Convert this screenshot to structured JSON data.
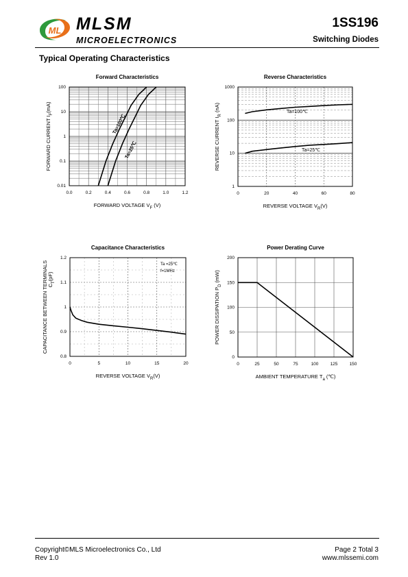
{
  "header": {
    "brand_name": "MLSM",
    "brand_sub": "MICROELECTRONICS",
    "part_number": "1SS196",
    "part_description": "Switching  Diodes",
    "logo_text": "ML"
  },
  "section_title": "Typical Operating Characteristics",
  "footer": {
    "copyright": "Copyright©MLS Microelectronics Co., Ltd",
    "revision": "Rev 1.0",
    "page": "Page 2 Total 3",
    "website": "www.mlssemi.com"
  },
  "colors": {
    "logo_green": "#2e9a3c",
    "logo_orange": "#e8701a",
    "line": "#000000"
  },
  "chart_data": [
    {
      "type": "line",
      "title": "Forward  Characteristics",
      "xlabel": "FORWARD VOLTAGE  V_F (V)",
      "ylabel": "FORWARD CURRENT   I_F(mA)",
      "xlim": [
        0,
        1.2
      ],
      "ylim": [
        0.01,
        100
      ],
      "yscale": "log",
      "x_ticks": [
        "0.0",
        "0.2",
        "0.4",
        "0.6",
        "0.8",
        "1.0",
        "1.2"
      ],
      "y_ticks": [
        "0.01",
        "0.1",
        "1",
        "10",
        "100"
      ],
      "series": [
        {
          "name": "Ta=100℃",
          "x": [
            0.3,
            0.38,
            0.45,
            0.52,
            0.58,
            0.64,
            0.72,
            0.8
          ],
          "y": [
            0.01,
            0.1,
            0.5,
            2,
            6,
            18,
            50,
            100
          ]
        },
        {
          "name": "Ta=25℃",
          "x": [
            0.4,
            0.48,
            0.55,
            0.62,
            0.68,
            0.74,
            0.82,
            0.9
          ],
          "y": [
            0.01,
            0.1,
            0.5,
            2,
            6,
            18,
            50,
            100
          ]
        }
      ],
      "grid": true
    },
    {
      "type": "line",
      "title": "Reverse  Characteristics",
      "xlabel": "REVERSE VOLTAGE   V_R(V)",
      "ylabel": "REVERSE CURRENT   I_R  (nA)",
      "xlim": [
        0,
        80
      ],
      "ylim": [
        1,
        1000
      ],
      "yscale": "log",
      "x_ticks": [
        "0",
        "20",
        "40",
        "60",
        "80"
      ],
      "y_ticks": [
        "1",
        "10",
        "100",
        "1000"
      ],
      "series": [
        {
          "name": "Ta=100℃",
          "x": [
            5,
            10,
            20,
            30,
            40,
            50,
            60,
            70,
            80
          ],
          "y": [
            160,
            180,
            205,
            225,
            245,
            260,
            275,
            290,
            300
          ]
        },
        {
          "name": "Ta=25℃",
          "x": [
            5,
            10,
            20,
            30,
            40,
            50,
            60,
            70,
            80
          ],
          "y": [
            10,
            11.5,
            13,
            14.5,
            16,
            17.5,
            18.5,
            19.5,
            21
          ]
        }
      ],
      "grid": true
    },
    {
      "type": "line",
      "title": "Capacitance Characteristics",
      "xlabel": "REVERSE VOLTAGE   V_R(V)",
      "ylabel": "CAPACITANCE BETWEEN TERMINALS",
      "ylabel2": "C_T(pF)",
      "xlim": [
        0,
        20
      ],
      "ylim": [
        0.8,
        1.2
      ],
      "x_ticks": [
        "0",
        "5",
        "10",
        "15",
        "20"
      ],
      "y_ticks": [
        "0.8",
        "0.9",
        "1",
        "1.1",
        "1.2"
      ],
      "annotations": [
        "Ta =25℃",
        "f=1MHz"
      ],
      "series": [
        {
          "name": "",
          "x": [
            0,
            0.2,
            0.5,
            1,
            2,
            3,
            5,
            7.5,
            10,
            12.5,
            15,
            17.5,
            20
          ],
          "y": [
            1.0,
            0.985,
            0.968,
            0.955,
            0.945,
            0.938,
            0.93,
            0.924,
            0.918,
            0.912,
            0.905,
            0.898,
            0.89
          ]
        }
      ],
      "grid": true
    },
    {
      "type": "line",
      "title": "Power Derating Curve",
      "xlabel": "AMBIENT TEMPERATURE     T_a  (℃)",
      "ylabel": "POWER  DISSIPATION  P_D  (mW)",
      "xlim": [
        0,
        150
      ],
      "ylim": [
        0,
        200
      ],
      "x_ticks": [
        "0",
        "25",
        "50",
        "75",
        "100",
        "125",
        "150"
      ],
      "y_ticks": [
        "0",
        "50",
        "100",
        "150",
        "200"
      ],
      "series": [
        {
          "name": "",
          "x": [
            0,
            25,
            150
          ],
          "y": [
            150,
            150,
            0
          ]
        }
      ],
      "grid": true
    }
  ]
}
